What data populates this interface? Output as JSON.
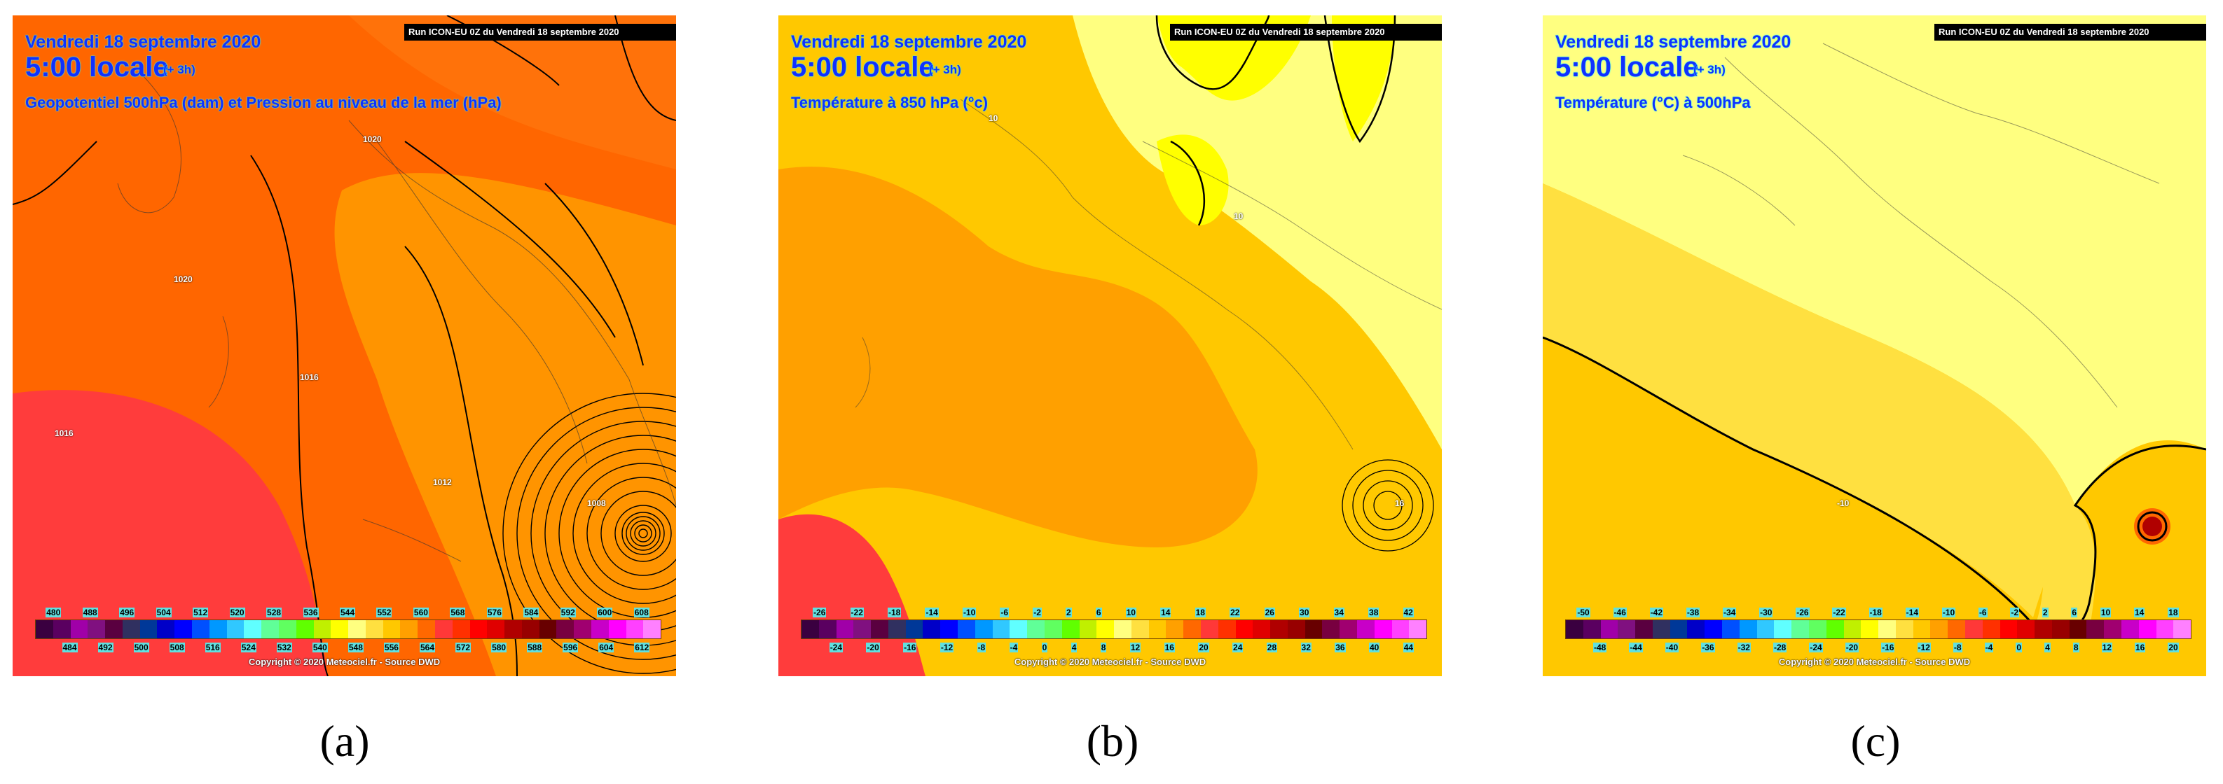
{
  "colorbar_colors": [
    "#3a0040",
    "#5a0060",
    "#a000a8",
    "#801080",
    "#5a0040",
    "#303060",
    "#003898",
    "#0000c8",
    "#0000ff",
    "#0050ff",
    "#0098ff",
    "#30c8ff",
    "#60ffff",
    "#60ff98",
    "#60ff60",
    "#60ff00",
    "#c0f000",
    "#ffff00",
    "#ffff80",
    "#ffe040",
    "#ffc800",
    "#ffa000",
    "#ff6800",
    "#ff3838",
    "#ff3000",
    "#ff0000",
    "#e00000",
    "#b00000",
    "#980000",
    "#680000",
    "#780040",
    "#a00070",
    "#c800c8",
    "#ff00ff",
    "#ff40ff",
    "#ff80ff"
  ],
  "panels": [
    {
      "label": "(a)",
      "date": "Vendredi 18 septembre 2020",
      "time": "5:00 locale",
      "offset": "(+ 3h)",
      "title": "Geopotentiel 500hPa (dam) et Pression au niveau de la mer (hPa)",
      "run": "Run ICON-EU 0Z du Vendredi 18 septembre 2020",
      "ticks_top": [
        "480",
        "488",
        "496",
        "504",
        "512",
        "520",
        "528",
        "536",
        "544",
        "552",
        "560",
        "568",
        "576",
        "584",
        "592",
        "600",
        "608"
      ],
      "ticks_bottom": [
        "484",
        "492",
        "500",
        "508",
        "516",
        "524",
        "532",
        "540",
        "548",
        "556",
        "564",
        "572",
        "580",
        "588",
        "596",
        "604",
        "612"
      ],
      "copyright": "Copyright © 2020 Meteociel.fr - Source DWD",
      "contour_labels": [
        "1020",
        "1020",
        "1016",
        "1016",
        "1012",
        "1008"
      ],
      "fill_colors": {
        "base": "#ff6600",
        "warm": "#ff3c3c",
        "light": "#ff9900"
      }
    },
    {
      "label": "(b)",
      "date": "Vendredi 18 septembre 2020",
      "time": "5:00 locale",
      "offset": "(+ 3h)",
      "title": "Température à 850 hPa (°c)",
      "run": "Run ICON-EU 0Z du Vendredi 18 septembre 2020",
      "ticks_top": [
        "-26",
        "-22",
        "-18",
        "-14",
        "-10",
        "-6",
        "-2",
        "2",
        "6",
        "10",
        "14",
        "18",
        "22",
        "26",
        "30",
        "34",
        "38",
        "42"
      ],
      "ticks_bottom": [
        "-24",
        "-20",
        "-16",
        "-12",
        "-8",
        "-4",
        "0",
        "4",
        "8",
        "12",
        "16",
        "20",
        "24",
        "28",
        "32",
        "36",
        "40",
        "44"
      ],
      "copyright": "Copyright © 2020 Meteociel.fr - Source DWD",
      "contour_labels": [
        "10",
        "10",
        "16"
      ],
      "fill_colors": {
        "base": "#ffc800",
        "warm": "#ff3c3c",
        "mid": "#ffa000",
        "light": "#ffff80",
        "yellow": "#ffff00"
      }
    },
    {
      "label": "(c)",
      "date": "Vendredi 18 septembre 2020",
      "time": "5:00 locale",
      "offset": "(+ 3h)",
      "title": "Température (°C) à 500hPa",
      "run": "Run ICON-EU 0Z du Vendredi 18 septembre 2020",
      "ticks_top": [
        "-50",
        "-46",
        "-42",
        "-38",
        "-34",
        "-30",
        "-26",
        "-22",
        "-18",
        "-14",
        "-10",
        "-6",
        "-2",
        "2",
        "6",
        "10",
        "14",
        "18"
      ],
      "ticks_bottom": [
        "-48",
        "-44",
        "-40",
        "-36",
        "-32",
        "-28",
        "-24",
        "-20",
        "-16",
        "-12",
        "-8",
        "-4",
        "0",
        "4",
        "8",
        "12",
        "16",
        "20"
      ],
      "copyright": "Copyright © 2020 Meteociel.fr - Source DWD",
      "contour_labels": [
        "-10"
      ],
      "fill_colors": {
        "base": "#ffc800",
        "mid": "#ffe040",
        "light": "#ffff80",
        "low": "#b00000"
      }
    }
  ]
}
